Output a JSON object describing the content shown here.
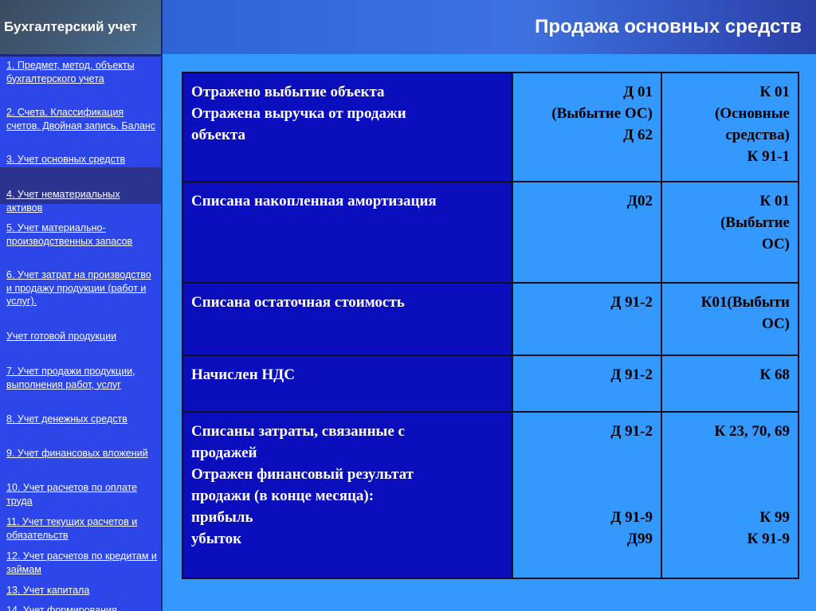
{
  "app_title": "Бухгалтерский учет",
  "page_title": "Продажа основных средств",
  "sidebar": {
    "items": [
      {
        "label": "1. Предмет, метод, объекты бухгалтерского учета"
      },
      {
        "label": "2. Счета. Классификация счетов. Двойная запись. Баланс"
      },
      {
        "label": "3. Учет основных средств"
      },
      {
        "label": "4. Учет нематериальных активов"
      },
      {
        "label": "5. Учет материально-производственных запасов"
      },
      {
        "label": "6. Учет затрат на производство и продажу продукции (работ и услуг)."
      },
      {
        "label": " Учет готовой продукции"
      },
      {
        "label": "7. Учет продажи продукции, выполнения работ, услуг"
      },
      {
        "label": "8. Учет денежных средств"
      },
      {
        "label": "9. Учет финансовых вложений"
      },
      {
        "label": "10. Учет расчетов по оплате труда"
      },
      {
        "label": "11. Учет текущих расчетов и обязательств"
      },
      {
        "label": "12. Учет расчетов по кредитам и займам"
      },
      {
        "label": "13. Учет капитала"
      },
      {
        "label": "14. Учет формирования"
      }
    ]
  },
  "table": {
    "rows": [
      {
        "desc": [
          "Отражено выбытие объекта",
          "Отражена выручка от продажи",
          "объекта"
        ],
        "debit": [
          "Д 01",
          "(Выбытие ОС)",
          "Д 62"
        ],
        "credit": [
          "К 01",
          "(Основные",
          "средства)",
          "К 91-1"
        ]
      },
      {
        "desc": [
          "Списана накопленная амортизация"
        ],
        "debit": [
          "Д02"
        ],
        "credit": [
          "К 01",
          "(Выбытие",
          "ОС)"
        ]
      },
      {
        "desc": [
          "Списана остаточная стоимость"
        ],
        "debit": [
          "Д 91-2"
        ],
        "credit": [
          "К01(Выбыти",
          "ОС)"
        ]
      },
      {
        "desc": [
          "Начислен НДС"
        ],
        "debit": [
          "Д 91-2"
        ],
        "credit": [
          "К 68"
        ]
      },
      {
        "desc": [
          "Списаны затраты, связанные с",
          "продажей",
          "Отражен финансовый результат",
          "продажи (в конце месяца):",
          "прибыль",
          "убыток"
        ],
        "debit": [
          "Д 91-2",
          "",
          "",
          "",
          "Д 91-9",
          "Д99"
        ],
        "credit": [
          "К 23, 70, 69",
          "",
          "",
          "",
          "К 99",
          "К 91-9"
        ]
      }
    ]
  }
}
